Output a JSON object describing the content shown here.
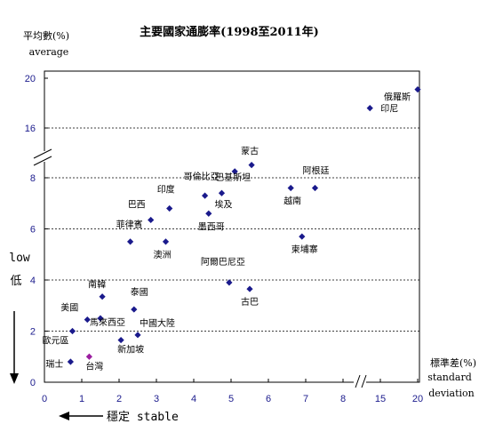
{
  "chart_data": {
    "type": "scatter",
    "title": "主要國家通膨率(1998至2011年)",
    "ylabel_zh": "平均數(%)",
    "ylabel_en": "average",
    "xlabel_zh": "標準差(%)",
    "xlabel_en_1": "standard",
    "xlabel_en_2": "deviation",
    "low_label_en": "low",
    "low_label_zh": "低",
    "stable_label": "穩定 stable",
    "x_ticks": [
      "0",
      "1",
      "2",
      "3",
      "4",
      "5",
      "6",
      "7",
      "8",
      "15",
      "20"
    ],
    "y_ticks": [
      "0",
      "2",
      "4",
      "6",
      "8",
      "16",
      "20"
    ],
    "x_axis": "broken after 8, continues 15–20",
    "y_axis": "broken after 8, continues 16–20",
    "ylim": [
      0,
      20
    ],
    "xlim": [
      0,
      20
    ],
    "grid": "horizontal dashed lines",
    "colors": {
      "point": "#1a1a8c",
      "taiwan": "#9b1ea0",
      "tick": "#1a1a8c"
    },
    "points": [
      {
        "label": "瑞士",
        "x": 0.7,
        "y": 0.8
      },
      {
        "label": "台灣",
        "x": 1.2,
        "y": 1.0,
        "highlight": true
      },
      {
        "label": "歐元區",
        "x": 0.75,
        "y": 2.0
      },
      {
        "label": "美國",
        "x": 1.15,
        "y": 2.45
      },
      {
        "label": "馬來西亞",
        "x": 1.5,
        "y": 2.5
      },
      {
        "label": "新加坡",
        "x": 2.05,
        "y": 1.65
      },
      {
        "label": "中國大陸",
        "x": 2.5,
        "y": 1.85
      },
      {
        "label": "泰國",
        "x": 2.4,
        "y": 2.85
      },
      {
        "label": "南韓",
        "x": 1.55,
        "y": 3.35
      },
      {
        "label": "菲律賓",
        "x": 2.3,
        "y": 5.5
      },
      {
        "label": "巴西",
        "x": 2.85,
        "y": 6.35
      },
      {
        "label": "澳洲",
        "x": 3.25,
        "y": 5.5
      },
      {
        "label": "印度",
        "x": 3.35,
        "y": 6.8
      },
      {
        "label": "哥倫比亞",
        "x": 4.3,
        "y": 7.3
      },
      {
        "label": "埃及",
        "x": 4.75,
        "y": 7.4
      },
      {
        "label": "墨西哥",
        "x": 4.4,
        "y": 6.6
      },
      {
        "label": "巴基斯坦",
        "x": 5.1,
        "y": 8.25
      },
      {
        "label": "蒙古",
        "x": 5.55,
        "y": 8.5
      },
      {
        "label": "阿根廷",
        "x": 7.25,
        "y": 7.6
      },
      {
        "label": "越南",
        "x": 6.6,
        "y": 7.6
      },
      {
        "label": "柬埔寨",
        "x": 6.9,
        "y": 5.7
      },
      {
        "label": "阿爾巴尼亞",
        "x": 4.95,
        "y": 3.9
      },
      {
        "label": "古巴",
        "x": 5.5,
        "y": 3.65
      },
      {
        "label": "印尼",
        "x": 13.6,
        "y": 17.6
      },
      {
        "label": "俄羅斯",
        "x": 20.0,
        "y": 19.1
      }
    ]
  }
}
